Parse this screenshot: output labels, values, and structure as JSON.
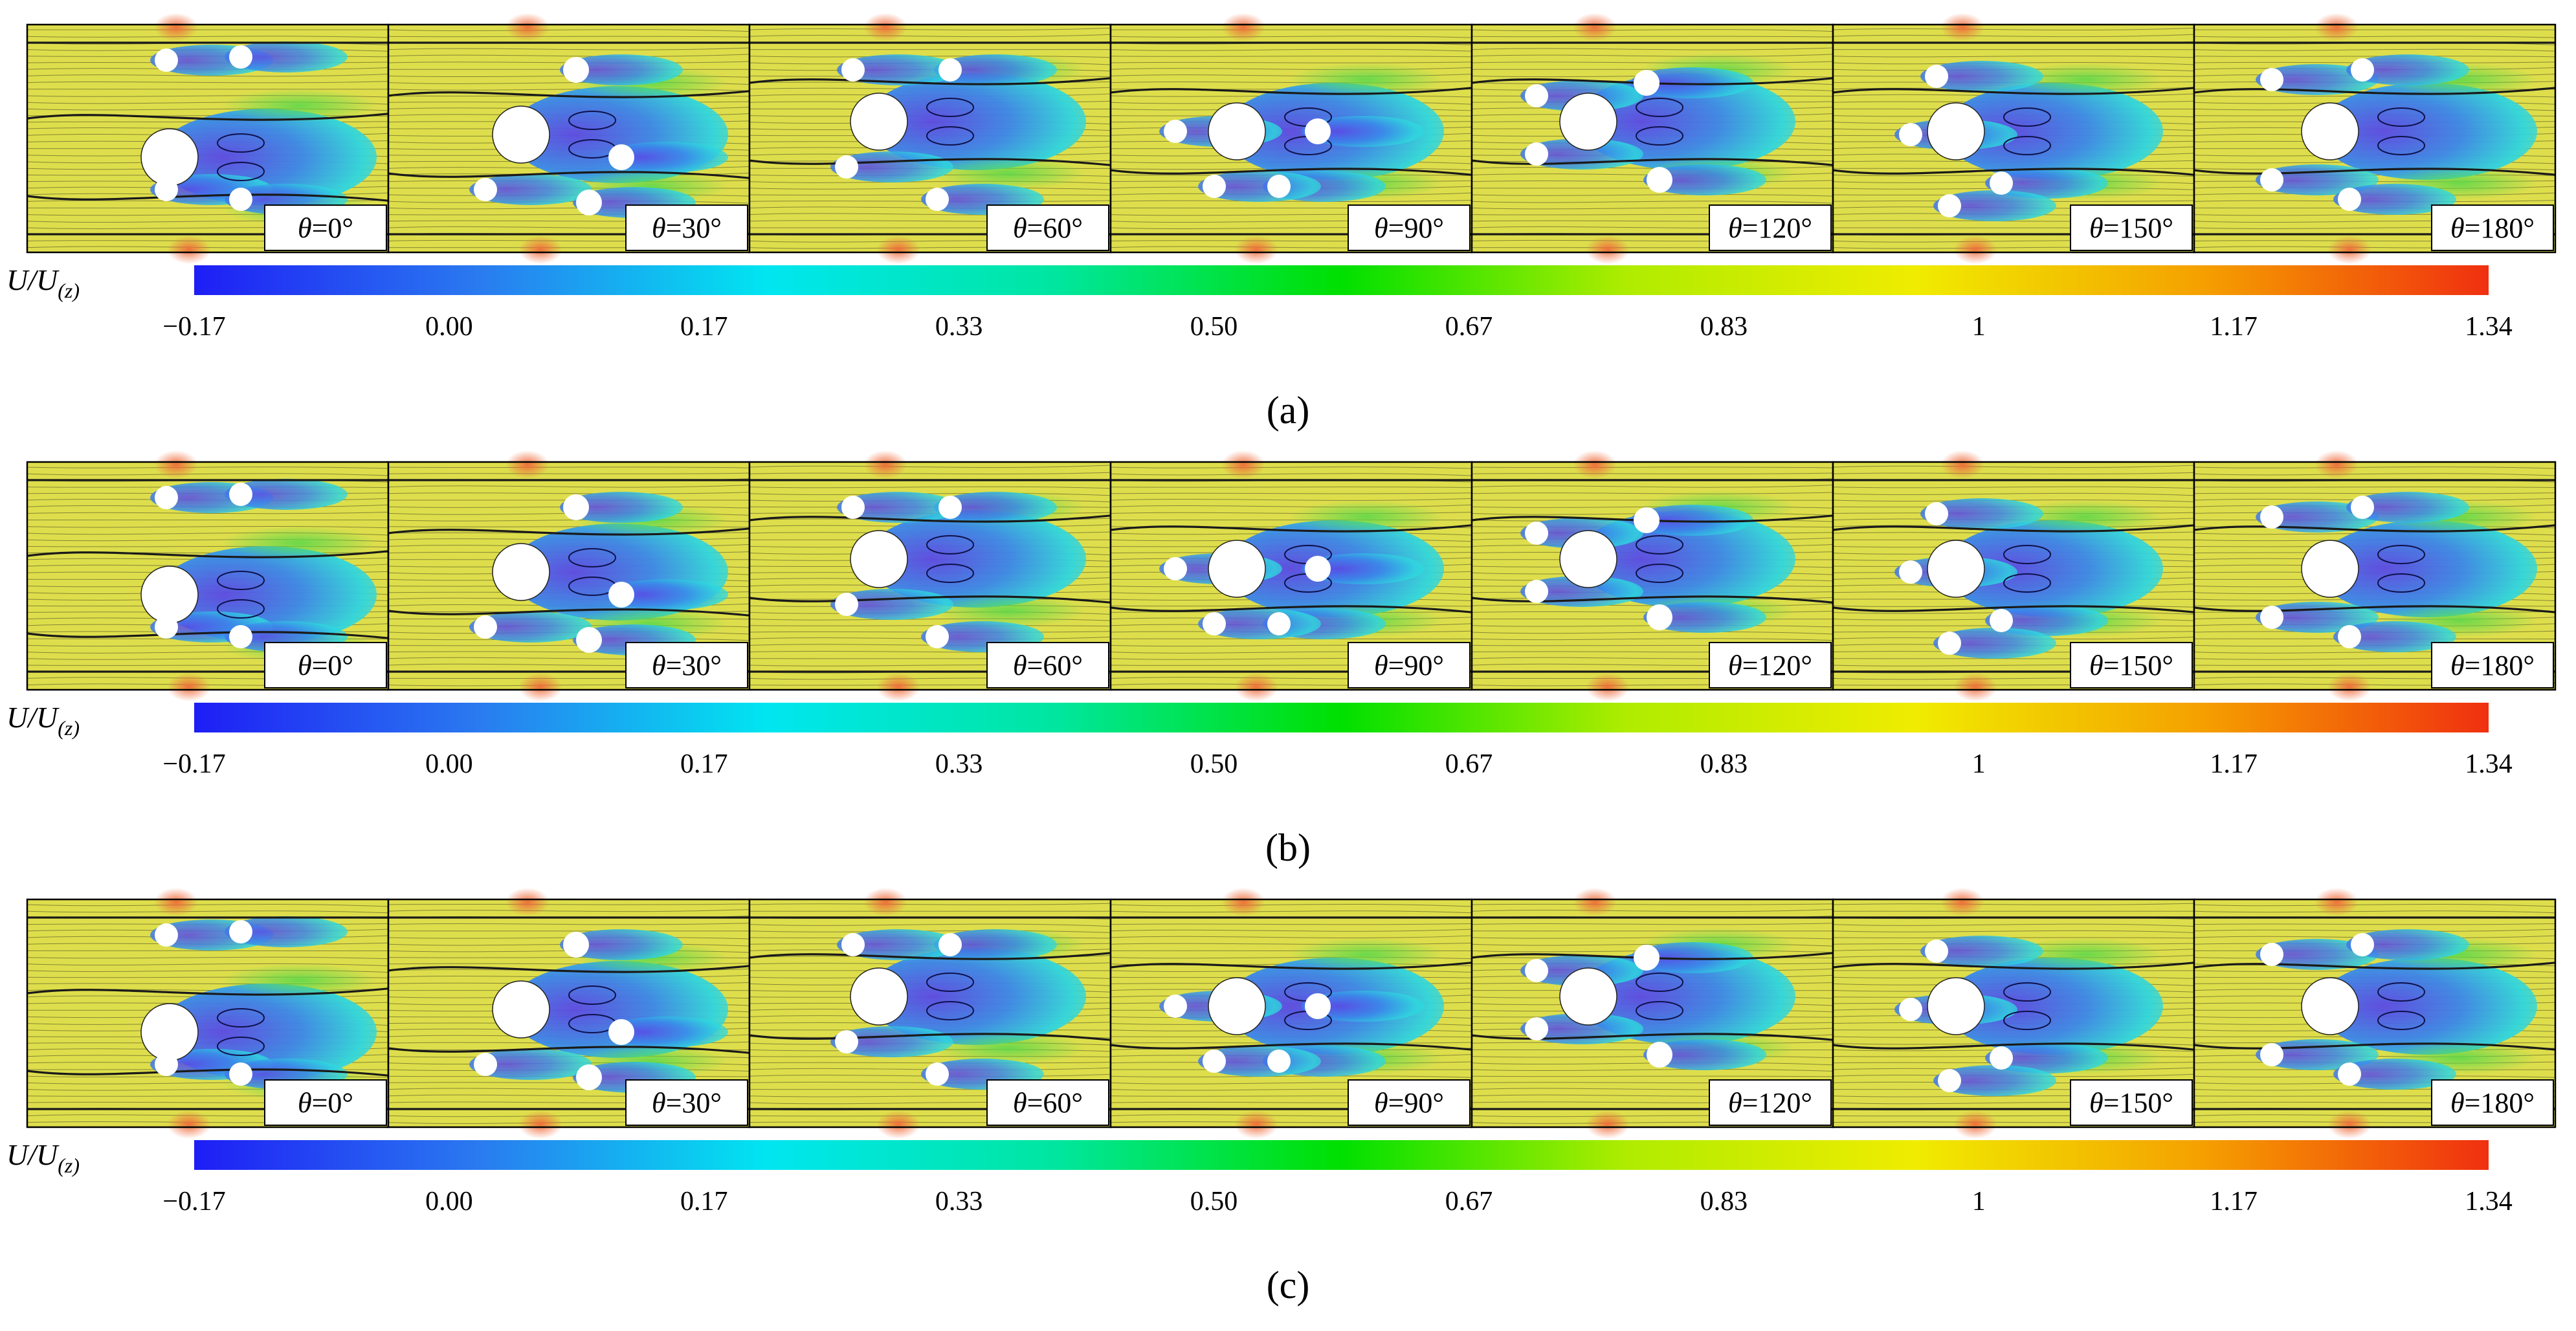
{
  "colorbar": {
    "label": "U/U",
    "label_subscript": "(z)",
    "ticks": [
      "−0.17",
      "0.00",
      "0.17",
      "0.33",
      "0.50",
      "0.67",
      "0.83",
      "1",
      "1.17",
      "1.34"
    ],
    "stops": [
      "#1e1ef5",
      "#2a7bf0",
      "#00e6f0",
      "#00e6a0",
      "#00e000",
      "#b0ec00",
      "#f0ec00",
      "#f5a000",
      "#f03010"
    ]
  },
  "angle_symbol": "θ",
  "panels": [
    {
      "label": "(a)",
      "angles": [
        "=0°",
        "=30°",
        "=60°",
        "=90°",
        "=120°",
        "=150°",
        "=180°"
      ]
    },
    {
      "label": "(b)",
      "angles": [
        "=0°",
        "=30°",
        "=60°",
        "=90°",
        "=120°",
        "=150°",
        "=180°"
      ]
    },
    {
      "label": "(c)",
      "angles": [
        "=0°",
        "=30°",
        "=60°",
        "=90°",
        "=120°",
        "=150°",
        "=180°"
      ]
    }
  ],
  "colors": {
    "freestream": "#dede4c",
    "wake": "#2fd6de",
    "recirculation": "#5a48e6",
    "accelerated": "#ee8a52",
    "streamline": "#1a1a1a",
    "cylinder": "#ffffff"
  }
}
